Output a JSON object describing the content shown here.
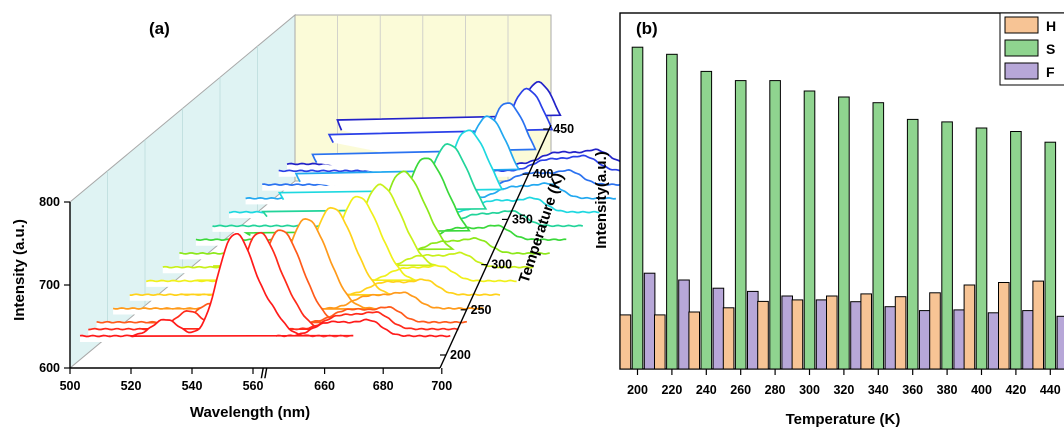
{
  "chart_data": [
    {
      "type": "line",
      "panel_label": "(a)",
      "xlabel": "Wavelength (nm)",
      "ylabel": "Intensity (a.u.)",
      "zlabel": "Temperature (K)",
      "xlim": [
        500,
        700
      ],
      "ylim": [
        600,
        800
      ],
      "x_ticks": [
        "500",
        "520",
        "540",
        "560",
        "660",
        "680",
        "700"
      ],
      "x_axis_break": "//",
      "y_ticks": [
        "600",
        "700",
        "800"
      ],
      "z_ticks": [
        "200",
        "250",
        "300",
        "350",
        "400",
        "450"
      ],
      "back_wall_color": "#fbfbd8",
      "side_wall_color": "#dff3f3",
      "series": [
        {
          "temperature": 200,
          "color": "#ff1a1a",
          "peaks": [
            {
              "x": 528,
              "h": 20
            },
            {
              "x": 548,
              "h": 80
            },
            {
              "x": 554,
              "h": 78
            },
            {
              "x": 562,
              "h": 30
            },
            {
              "x": 656,
              "h": 12
            },
            {
              "x": 663,
              "h": 12
            },
            {
              "x": 672,
              "h": 18
            }
          ]
        },
        {
          "temperature": 210,
          "color": "#ff2a1a",
          "peaks": [
            {
              "x": 533,
              "h": 22
            },
            {
              "x": 553,
              "h": 76
            },
            {
              "x": 559,
              "h": 72
            },
            {
              "x": 566,
              "h": 28
            },
            {
              "x": 657,
              "h": 12
            },
            {
              "x": 664,
              "h": 12
            },
            {
              "x": 672,
              "h": 18
            }
          ]
        },
        {
          "temperature": 220,
          "color": "#ff5a1a",
          "peaks": [
            {
              "x": 537,
              "h": 22
            },
            {
              "x": 557,
              "h": 72
            },
            {
              "x": 563,
              "h": 68
            },
            {
              "x": 569,
              "h": 26
            },
            {
              "x": 657,
              "h": 11
            },
            {
              "x": 664,
              "h": 11
            },
            {
              "x": 673,
              "h": 17
            }
          ]
        },
        {
          "temperature": 240,
          "color": "#ff9a1a",
          "peaks": [
            {
              "x": 541,
              "h": 22
            },
            {
              "x": 560,
              "h": 70
            },
            {
              "x": 566,
              "h": 66
            },
            {
              "x": 572,
              "h": 26
            },
            {
              "x": 658,
              "h": 11
            },
            {
              "x": 665,
              "h": 11
            },
            {
              "x": 673,
              "h": 17
            }
          ]
        },
        {
          "temperature": 260,
          "color": "#ffd21a",
          "peaks": [
            {
              "x": 544,
              "h": 22
            },
            {
              "x": 563,
              "h": 68
            },
            {
              "x": 569,
              "h": 64
            },
            {
              "x": 575,
              "h": 25
            },
            {
              "x": 658,
              "h": 11
            },
            {
              "x": 665,
              "h": 11
            },
            {
              "x": 674,
              "h": 17
            }
          ]
        },
        {
          "temperature": 280,
          "color": "#f0f01a",
          "peaks": [
            {
              "x": 547,
              "h": 22
            },
            {
              "x": 566,
              "h": 66
            },
            {
              "x": 572,
              "h": 62
            },
            {
              "x": 578,
              "h": 25
            },
            {
              "x": 659,
              "h": 11
            },
            {
              "x": 666,
              "h": 11
            },
            {
              "x": 674,
              "h": 16
            }
          ]
        },
        {
          "temperature": 300,
          "color": "#c8f01a",
          "peaks": [
            {
              "x": 550,
              "h": 22
            },
            {
              "x": 568,
              "h": 65
            },
            {
              "x": 574,
              "h": 60
            },
            {
              "x": 580,
              "h": 24
            },
            {
              "x": 659,
              "h": 10
            },
            {
              "x": 666,
              "h": 10
            },
            {
              "x": 675,
              "h": 16
            }
          ]
        },
        {
          "temperature": 320,
          "color": "#8ce81a",
          "peaks": [
            {
              "x": 552,
              "h": 22
            },
            {
              "x": 570,
              "h": 64
            },
            {
              "x": 576,
              "h": 60
            },
            {
              "x": 582,
              "h": 24
            },
            {
              "x": 660,
              "h": 10
            },
            {
              "x": 667,
              "h": 10
            },
            {
              "x": 675,
              "h": 16
            }
          ]
        },
        {
          "temperature": 340,
          "color": "#3ad83a",
          "peaks": [
            {
              "x": 554,
              "h": 22
            },
            {
              "x": 572,
              "h": 64
            },
            {
              "x": 578,
              "h": 60
            },
            {
              "x": 584,
              "h": 24
            },
            {
              "x": 660,
              "h": 10
            },
            {
              "x": 667,
              "h": 10
            },
            {
              "x": 676,
              "h": 16
            }
          ]
        },
        {
          "temperature": 360,
          "color": "#22d49a",
          "peaks": [
            {
              "x": 556,
              "h": 22
            },
            {
              "x": 574,
              "h": 64
            },
            {
              "x": 580,
              "h": 60
            },
            {
              "x": 586,
              "h": 24
            },
            {
              "x": 661,
              "h": 10
            },
            {
              "x": 668,
              "h": 10
            },
            {
              "x": 676,
              "h": 16
            }
          ]
        },
        {
          "temperature": 380,
          "color": "#1ed8e0",
          "peaks": [
            {
              "x": 557,
              "h": 22
            },
            {
              "x": 575,
              "h": 64
            },
            {
              "x": 581,
              "h": 60
            },
            {
              "x": 587,
              "h": 24
            },
            {
              "x": 661,
              "h": 10
            },
            {
              "x": 668,
              "h": 10
            },
            {
              "x": 677,
              "h": 16
            }
          ]
        },
        {
          "temperature": 400,
          "color": "#22a8f0",
          "peaks": [
            {
              "x": 558,
              "h": 22
            },
            {
              "x": 576,
              "h": 64
            },
            {
              "x": 582,
              "h": 60
            },
            {
              "x": 588,
              "h": 24
            },
            {
              "x": 662,
              "h": 10
            },
            {
              "x": 669,
              "h": 10
            },
            {
              "x": 677,
              "h": 16
            }
          ]
        },
        {
          "temperature": 420,
          "color": "#2a72f0",
          "peaks": [
            {
              "x": 559,
              "h": 22
            },
            {
              "x": 577,
              "h": 64
            },
            {
              "x": 583,
              "h": 60
            },
            {
              "x": 589,
              "h": 24
            },
            {
              "x": 662,
              "h": 10
            },
            {
              "x": 669,
              "h": 10
            },
            {
              "x": 678,
              "h": 16
            }
          ]
        },
        {
          "temperature": 440,
          "color": "#2a40e8",
          "peaks": [
            {
              "x": 560,
              "h": 22
            },
            {
              "x": 578,
              "h": 64
            },
            {
              "x": 584,
              "h": 60
            },
            {
              "x": 590,
              "h": 24
            },
            {
              "x": 663,
              "h": 10
            },
            {
              "x": 670,
              "h": 10
            },
            {
              "x": 678,
              "h": 16
            }
          ]
        },
        {
          "temperature": 450,
          "color": "#2222c8",
          "peaks": [
            {
              "x": 561,
              "h": 22
            },
            {
              "x": 579,
              "h": 64
            },
            {
              "x": 585,
              "h": 60
            },
            {
              "x": 591,
              "h": 24
            },
            {
              "x": 663,
              "h": 10
            },
            {
              "x": 670,
              "h": 10
            },
            {
              "x": 679,
              "h": 16
            }
          ]
        }
      ]
    },
    {
      "type": "bar",
      "panel_label": "(b)",
      "xlabel": "Temperature (K)",
      "ylabel": "Intensity(a.u.)",
      "categories": [
        "200",
        "220",
        "240",
        "260",
        "280",
        "300",
        "320",
        "340",
        "360",
        "380",
        "400",
        "420",
        "440"
      ],
      "ylim": [
        0,
        100
      ],
      "legend_position": "top-right",
      "series": [
        {
          "name": "H",
          "color": "#f7c495",
          "values": [
            15.2,
            15.2,
            16.0,
            17.2,
            19.0,
            19.4,
            20.5,
            21.1,
            20.3,
            21.4,
            23.6,
            24.3,
            24.7
          ]
        },
        {
          "name": "S",
          "color": "#8fd48f",
          "values": [
            90.4,
            88.4,
            83.6,
            81.0,
            81.0,
            78.1,
            76.4,
            74.8,
            70.1,
            69.4,
            67.7,
            66.7,
            63.7
          ]
        },
        {
          "name": "F",
          "color": "#b7a7d8",
          "values": [
            26.9,
            25.0,
            22.7,
            21.8,
            20.5,
            19.4,
            18.9,
            17.5,
            16.4,
            16.6,
            15.8,
            16.4,
            14.8
          ]
        }
      ]
    }
  ]
}
